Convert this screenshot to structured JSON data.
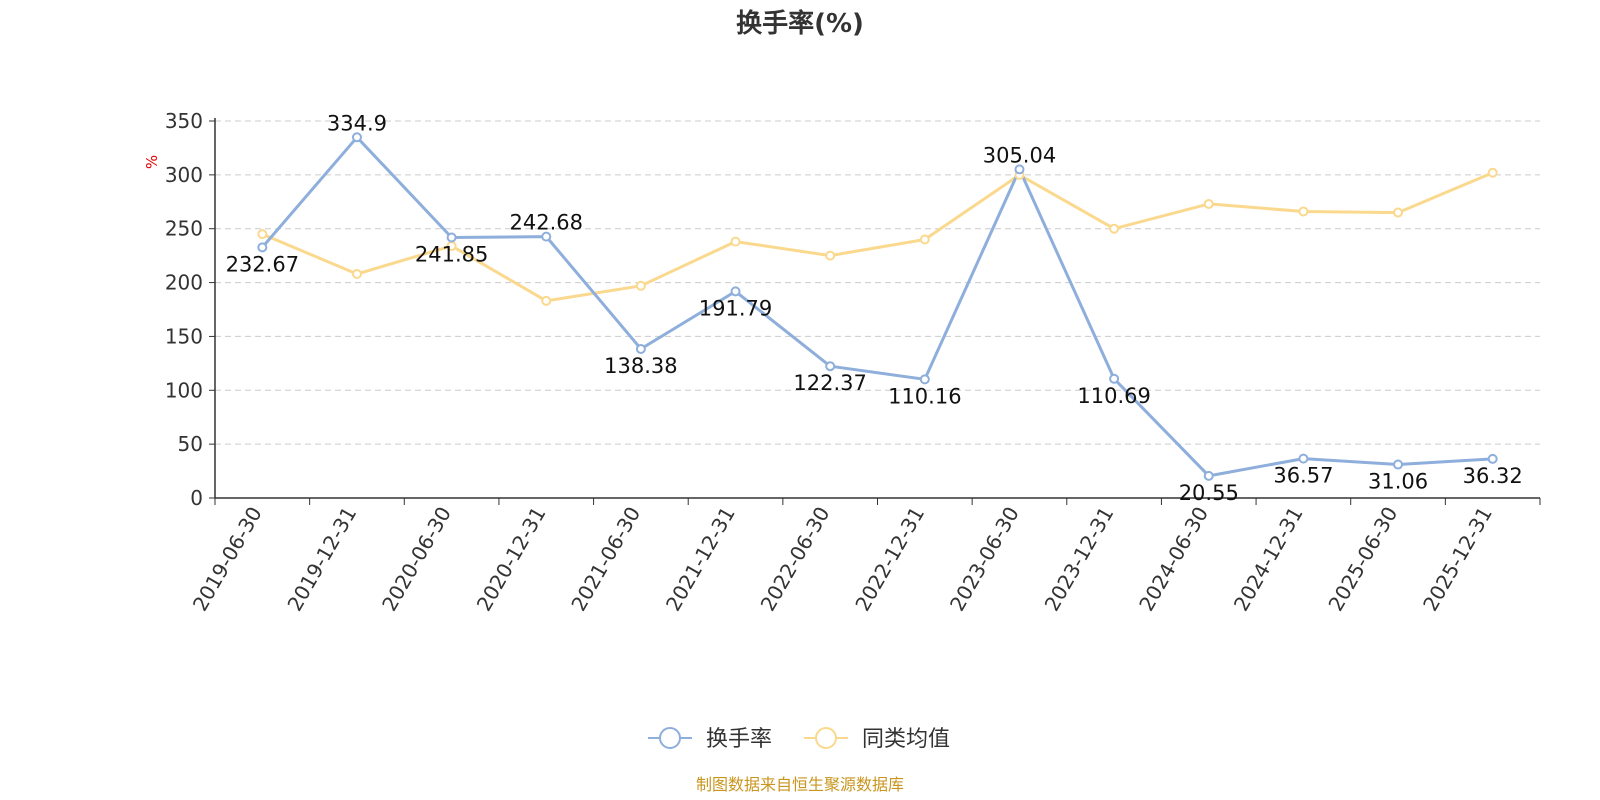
{
  "chart_data": {
    "type": "line",
    "title": "换手率(%)",
    "ylabel": "%",
    "ylim": [
      0,
      350
    ],
    "yticks": [
      0,
      50,
      100,
      150,
      200,
      250,
      300,
      350
    ],
    "grid": true,
    "legend_position": "bottom-center",
    "categories": [
      "2019-06-30",
      "2019-12-31",
      "2020-06-30",
      "2020-12-31",
      "2021-06-30",
      "2021-12-31",
      "2022-06-30",
      "2022-12-31",
      "2023-06-30",
      "2023-12-31",
      "2024-06-30",
      "2024-12-31",
      "2025-06-30",
      "2025-12-31"
    ],
    "series": [
      {
        "name": "换手率",
        "color": "#8eaedb",
        "values": [
          232.67,
          334.9,
          241.85,
          242.68,
          138.38,
          191.79,
          122.37,
          110.16,
          305.04,
          110.69,
          20.55,
          36.57,
          31.06,
          36.32
        ],
        "labels": [
          "232.67",
          "334.9",
          "241.85",
          "242.68",
          "138.38",
          "191.79",
          "122.37",
          "110.16",
          "305.04",
          "110.69",
          "20.55",
          "36.57",
          "31.06",
          "36.32"
        ]
      },
      {
        "name": "同类均值",
        "color": "#fad98e",
        "values": [
          245,
          208,
          234,
          183,
          197,
          238,
          225,
          240,
          300,
          250,
          273,
          266,
          265,
          302
        ]
      }
    ],
    "source": "制图数据来自恒生聚源数据库"
  }
}
